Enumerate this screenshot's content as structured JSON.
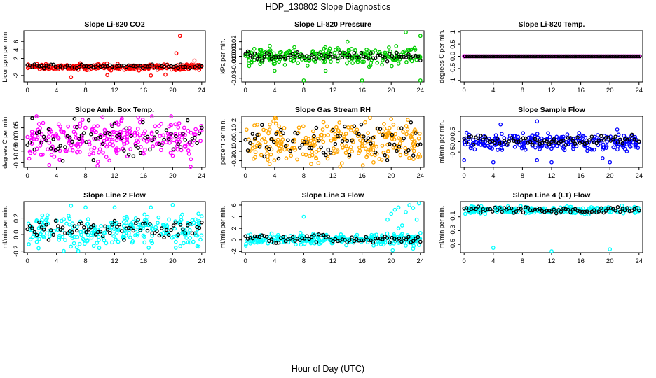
{
  "title": "HDP_130802  Slope Diagnostics",
  "xlabel": "Hour of Day (UTC)",
  "chart_data": [
    {
      "type": "scatter",
      "title": "Slope Li-820 CO2",
      "ylabel": "Licor ppm per min.",
      "color": "#ff0000",
      "xlim": [
        -0.5,
        24.5
      ],
      "ylim": [
        -3.5,
        8.5
      ],
      "xticks": [
        0,
        4,
        8,
        12,
        16,
        20,
        24
      ],
      "yticks": [
        -2,
        2,
        4,
        6
      ],
      "base": 0,
      "spread": 0.35,
      "outliers": [
        [
          21,
          7.3
        ],
        [
          20.5,
          3.2
        ],
        [
          19,
          -1.8
        ],
        [
          17,
          -2.0
        ],
        [
          23,
          1.5
        ],
        [
          11,
          -1.9
        ],
        [
          6,
          -2.4
        ]
      ],
      "black_offset": 0.1,
      "black_spread": 0.2
    },
    {
      "type": "scatter",
      "title": "Slope Li-820 Pressure",
      "ylabel": "kPa per min.",
      "color": "#00cc00",
      "xlim": [
        -0.5,
        24.5
      ],
      "ylim": [
        -0.035,
        0.035
      ],
      "xticks": [
        0,
        4,
        8,
        12,
        16,
        20,
        24
      ],
      "yticks": [
        -0.03,
        -0.01,
        0.0,
        0.01,
        0.02
      ],
      "base": 0,
      "spread": 0.006,
      "outliers": [
        [
          22,
          0.033
        ],
        [
          16,
          -0.033
        ],
        [
          24,
          -0.033
        ],
        [
          8,
          -0.033
        ],
        [
          24,
          0.028
        ],
        [
          4,
          -0.02
        ],
        [
          11,
          -0.02
        ],
        [
          14,
          0.02
        ]
      ],
      "black_offset": 0,
      "black_spread": 0.003
    },
    {
      "type": "scatter",
      "title": "Slope Li-820 Temp.",
      "ylabel": "degrees C per min.",
      "color": "#ff00ff",
      "xlim": [
        -0.5,
        24.5
      ],
      "ylim": [
        -1.05,
        1.05
      ],
      "xticks": [
        0,
        4,
        8,
        12,
        16,
        20,
        24
      ],
      "yticks": [
        -1.0,
        -0.5,
        0.0,
        0.5,
        1.0
      ],
      "base": 0,
      "spread": 0,
      "outliers": [],
      "black_offset": 0,
      "black_spread": 0
    },
    {
      "type": "scatter",
      "title": "Slope Amb. Box Temp.",
      "ylabel": "degrees C per min.",
      "color": "#ff00ff",
      "xlim": [
        -0.5,
        24.5
      ],
      "ylim": [
        -0.12,
        0.1
      ],
      "xticks": [
        0,
        4,
        8,
        12,
        16,
        20,
        24
      ],
      "yticks": [
        -0.1,
        -0.05,
        0.0,
        0.05
      ],
      "base": 0,
      "spread": 0.045,
      "outliers": [
        [
          3,
          -0.11
        ],
        [
          13,
          0.09
        ]
      ],
      "black_offset": 0,
      "black_spread": 0.04
    },
    {
      "type": "scatter",
      "title": "Slope Gas Stream RH",
      "ylabel": "percent per min.",
      "color": "#ffa500",
      "xlim": [
        -0.5,
        24.5
      ],
      "ylim": [
        -0.27,
        0.27
      ],
      "xticks": [
        0,
        4,
        8,
        12,
        16,
        20,
        24
      ],
      "yticks": [
        -0.2,
        -0.1,
        0.0,
        0.1,
        0.2
      ],
      "base": 0,
      "spread": 0.11,
      "outliers": [
        [
          13,
          -0.26
        ],
        [
          20,
          0.24
        ]
      ],
      "black_offset": 0,
      "black_spread": 0.08
    },
    {
      "type": "scatter",
      "title": "Slope Sample Flow",
      "ylabel": "ml/min per min.",
      "color": "#0000ff",
      "xlim": [
        -0.5,
        24.5
      ],
      "ylim": [
        -1.25,
        1.25
      ],
      "xticks": [
        0,
        4,
        8,
        12,
        16,
        20,
        24
      ],
      "yticks": [
        -0.5,
        0.0,
        0.5
      ],
      "base": 0,
      "spread": 0.2,
      "outliers": [
        [
          4,
          -1.0
        ],
        [
          5,
          0.85
        ],
        [
          10,
          1.0
        ],
        [
          12,
          -1.0
        ],
        [
          19,
          -0.8
        ],
        [
          20,
          -1.0
        ],
        [
          21,
          0.6
        ],
        [
          10,
          -0.9
        ],
        [
          0,
          -0.9
        ]
      ],
      "black_offset": 0.05,
      "black_spread": 0.12
    },
    {
      "type": "scatter",
      "title": "Slope Line 2 Flow",
      "ylabel": "ml/min per min.",
      "color": "#00ffff",
      "xlim": [
        -0.5,
        24.5
      ],
      "ylim": [
        -0.22,
        0.4
      ],
      "xticks": [
        0,
        4,
        8,
        12,
        16,
        20,
        24
      ],
      "yticks": [
        -0.2,
        0.0,
        0.2
      ],
      "base": 0.05,
      "spread": 0.09,
      "outliers": [
        [
          5,
          -0.2
        ],
        [
          7,
          -0.2
        ],
        [
          8,
          0.33
        ],
        [
          12,
          0.33
        ],
        [
          20,
          0.36
        ],
        [
          6,
          0.35
        ],
        [
          17,
          0.33
        ]
      ],
      "black_offset": 0.02,
      "black_spread": 0.05
    },
    {
      "type": "scatter",
      "title": "Slope Line 3 Flow",
      "ylabel": "ml/min per min.",
      "color": "#00ffff",
      "xlim": [
        -0.5,
        24.5
      ],
      "ylim": [
        -2.2,
        6.6
      ],
      "xticks": [
        0,
        4,
        8,
        12,
        16,
        20,
        24
      ],
      "yticks": [
        -2,
        0,
        2,
        4,
        6
      ],
      "base": 0.1,
      "spread": 0.45,
      "outliers": [
        [
          8,
          4.0
        ],
        [
          19.5,
          3.5
        ],
        [
          20,
          4.5
        ],
        [
          20.5,
          5.2
        ],
        [
          21,
          5.6
        ],
        [
          22,
          4.8
        ],
        [
          22.5,
          6.0
        ],
        [
          23,
          5.5
        ],
        [
          23.5,
          3.5
        ],
        [
          23.8,
          6.3
        ],
        [
          21.5,
          2.5
        ],
        [
          20.2,
          -1.8
        ],
        [
          22,
          -1.0
        ],
        [
          23,
          -1.5
        ],
        [
          21,
          2.0
        ],
        [
          24,
          1.2
        ]
      ],
      "black_offset": 0,
      "black_spread": 0.35
    },
    {
      "type": "scatter",
      "title": "Slope Line 4 (LT) Flow",
      "ylabel": "ml/min per min.",
      "color": "#00ffff",
      "xlim": [
        -0.5,
        24.5
      ],
      "ylim": [
        -0.62,
        0.12
      ],
      "xticks": [
        0,
        4,
        8,
        12,
        16,
        20,
        24
      ],
      "yticks": [
        -0.5,
        -0.3,
        -0.1
      ],
      "base": 0.0,
      "spread": 0.025,
      "outliers": [
        [
          4,
          -0.55
        ],
        [
          12,
          -0.6
        ],
        [
          20,
          -0.57
        ]
      ],
      "black_offset": 0,
      "black_spread": 0.02
    }
  ]
}
